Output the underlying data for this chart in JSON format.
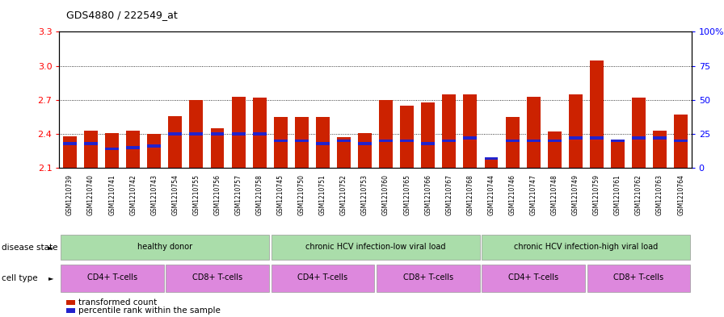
{
  "title": "GDS4880 / 222549_at",
  "samples": [
    "GSM1210739",
    "GSM1210740",
    "GSM1210741",
    "GSM1210742",
    "GSM1210743",
    "GSM1210754",
    "GSM1210755",
    "GSM1210756",
    "GSM1210757",
    "GSM1210758",
    "GSM1210745",
    "GSM1210750",
    "GSM1210751",
    "GSM1210752",
    "GSM1210753",
    "GSM1210760",
    "GSM1210765",
    "GSM1210766",
    "GSM1210767",
    "GSM1210768",
    "GSM1210744",
    "GSM1210746",
    "GSM1210747",
    "GSM1210748",
    "GSM1210749",
    "GSM1210759",
    "GSM1210761",
    "GSM1210762",
    "GSM1210763",
    "GSM1210764"
  ],
  "transformed_count": [
    2.38,
    2.43,
    2.41,
    2.43,
    2.4,
    2.56,
    2.7,
    2.45,
    2.73,
    2.72,
    2.55,
    2.55,
    2.55,
    2.37,
    2.41,
    2.7,
    2.65,
    2.68,
    2.75,
    2.75,
    2.18,
    2.55,
    2.73,
    2.42,
    2.75,
    3.05,
    2.35,
    2.72,
    2.43,
    2.57
  ],
  "percentile_rank": [
    18,
    18,
    14,
    15,
    16,
    25,
    25,
    25,
    25,
    25,
    20,
    20,
    18,
    20,
    18,
    20,
    20,
    18,
    20,
    22,
    7,
    20,
    20,
    20,
    22,
    22,
    20,
    22,
    22,
    20
  ],
  "bar_color": "#cc2200",
  "percentile_color": "#2222cc",
  "ymin": 2.1,
  "ymax": 3.3,
  "yticks_left": [
    2.1,
    2.4,
    2.7,
    3.0,
    3.3
  ],
  "yticks_right": [
    0,
    25,
    50,
    75,
    100
  ],
  "legend_red": "transformed count",
  "legend_blue": "percentile rank within the sample",
  "ds_groups": [
    [
      0,
      10,
      "healthy donor"
    ],
    [
      10,
      20,
      "chronic HCV infection-low viral load"
    ],
    [
      20,
      30,
      "chronic HCV infection-high viral load"
    ]
  ],
  "ct_groups": [
    [
      0,
      5,
      "CD4+ T-cells"
    ],
    [
      5,
      10,
      "CD8+ T-cells"
    ],
    [
      10,
      15,
      "CD4+ T-cells"
    ],
    [
      15,
      20,
      "CD8+ T-cells"
    ],
    [
      20,
      25,
      "CD4+ T-cells"
    ],
    [
      25,
      30,
      "CD8+ T-cells"
    ]
  ],
  "green_color": "#aaddaa",
  "purple_color": "#dd88dd",
  "ticklabel_bg": "#d8d8d8"
}
